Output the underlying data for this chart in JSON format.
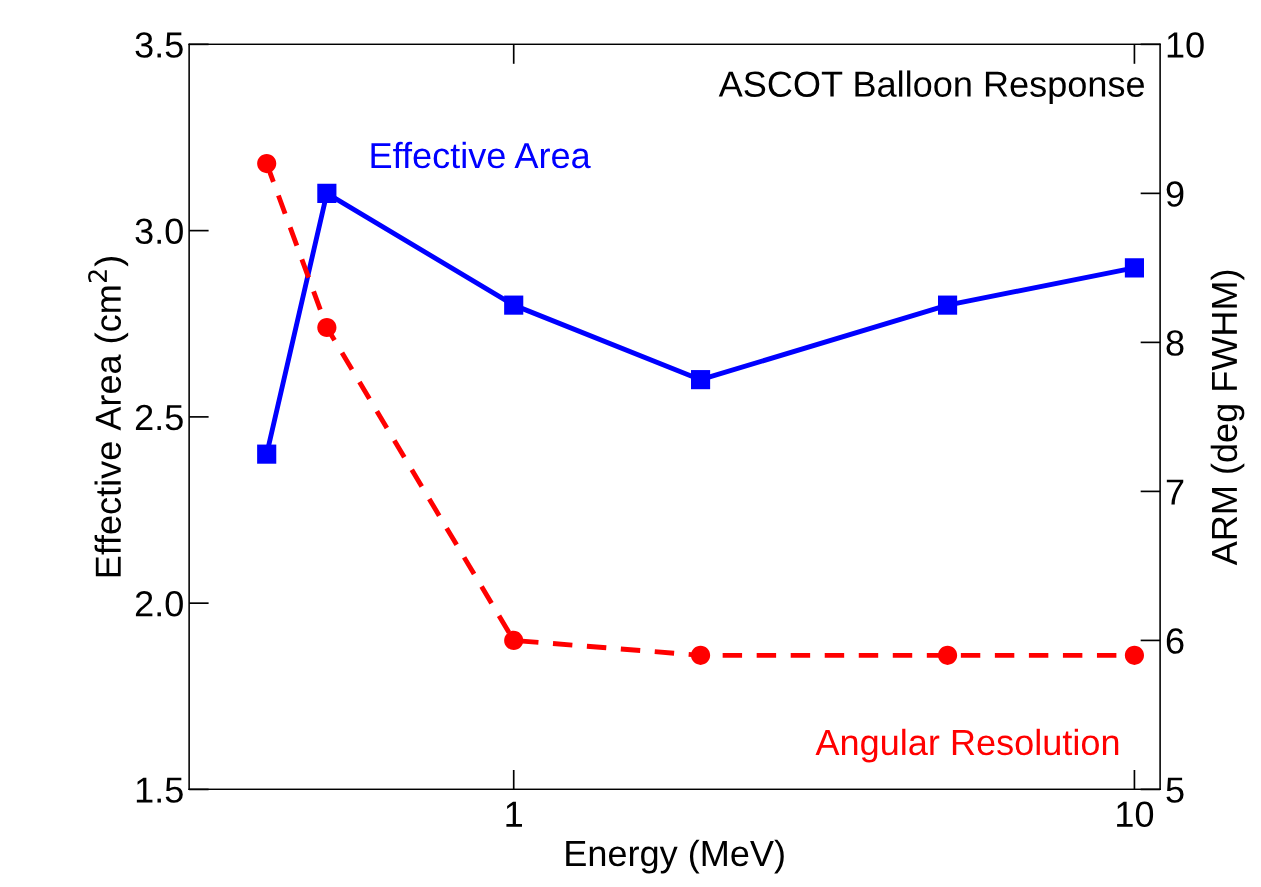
{
  "chart_data": {
    "type": "line",
    "title": "ASCOT Balloon Response",
    "xlabel": "Energy (MeV)",
    "ylabel": "Effective Area (cm$^{2}$)",
    "y2label": "ARM (deg FWHM)",
    "x": [
      0.4,
      0.5,
      1,
      2,
      5,
      10
    ],
    "log": "x",
    "xlim": [
      0.3,
      11
    ],
    "xticks": [
      1,
      10
    ],
    "ylim": [
      1.5,
      3.5
    ],
    "yticks": [
      {
        "value": 1.5,
        "label": "1.5"
      },
      {
        "value": 2.0,
        "label": "2.0"
      },
      {
        "value": 2.5,
        "label": "2.5"
      },
      {
        "value": 3.0,
        "label": "3.0"
      },
      {
        "value": 3.5,
        "label": "3.5"
      }
    ],
    "y2lim": [
      5,
      10
    ],
    "y2ticks": [
      5,
      6,
      7,
      8,
      9,
      10
    ],
    "grid": false,
    "legend": false,
    "series": [
      {
        "name": "Effective Area",
        "color": "#0000ff",
        "values": [
          2.4,
          3.1,
          2.8,
          2.6,
          2.8,
          2.9
        ],
        "marker": "square",
        "line_style": "solid"
      },
      {
        "name": "Angular Resolution",
        "color": "#ff0000",
        "values": [
          9.2,
          8.1,
          6.0,
          5.9,
          5.9,
          5.9
        ],
        "marker": "circle",
        "line_style": "dashed",
        "axis": "y2"
      }
    ]
  }
}
